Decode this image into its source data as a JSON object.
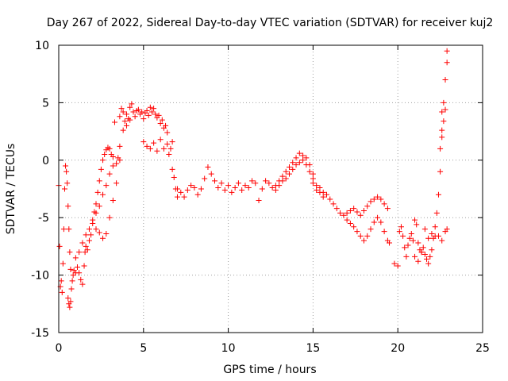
{
  "chart_data": {
    "type": "scatter",
    "title": "Day 267 of 2022, Sidereal Day-to-day VTEC variation (SDTVAR) for receiver kuj2",
    "xlabel": "GPS time / hours",
    "ylabel": "SDTVAR / TECUs",
    "xlim": [
      0,
      25
    ],
    "ylim": [
      -15,
      10
    ],
    "xticks": [
      0,
      5,
      10,
      15,
      20,
      25
    ],
    "yticks": [
      -15,
      -10,
      -5,
      0,
      5,
      10
    ],
    "xtick_labels": [
      "0",
      "5",
      "10",
      "15",
      "20",
      "25"
    ],
    "ytick_labels": [
      "-15",
      "-10",
      "-5",
      "0",
      "5",
      "10"
    ],
    "grid": true,
    "marker": "+",
    "color": "#ff0000",
    "series": [
      {
        "name": "kuj2",
        "points": [
          [
            0.0,
            -2.2
          ],
          [
            0.05,
            -7.5
          ],
          [
            0.1,
            -11.0
          ],
          [
            0.15,
            -10.5
          ],
          [
            0.2,
            -11.5
          ],
          [
            0.25,
            -9.0
          ],
          [
            0.3,
            -6.0
          ],
          [
            0.35,
            -2.5
          ],
          [
            0.4,
            -0.5
          ],
          [
            0.45,
            -1.0
          ],
          [
            0.5,
            -2.0
          ],
          [
            0.55,
            -4.0
          ],
          [
            0.6,
            -6.0
          ],
          [
            0.65,
            -8.0
          ],
          [
            0.7,
            -9.5
          ],
          [
            0.55,
            -12.0
          ],
          [
            0.6,
            -12.5
          ],
          [
            0.65,
            -12.8
          ],
          [
            0.7,
            -12.3
          ],
          [
            0.75,
            -11.2
          ],
          [
            0.8,
            -10.5
          ],
          [
            0.85,
            -10.0
          ],
          [
            0.9,
            -9.6
          ],
          [
            1.0,
            -9.8
          ],
          [
            1.1,
            -9.3
          ],
          [
            1.2,
            -9.8
          ],
          [
            1.3,
            -10.4
          ],
          [
            1.4,
            -10.8
          ],
          [
            1.5,
            -9.2
          ],
          [
            1.55,
            -8.0
          ],
          [
            1.6,
            -7.5
          ],
          [
            1.7,
            -7.8
          ],
          [
            1.8,
            -7.0
          ],
          [
            1.9,
            -6.5
          ],
          [
            2.0,
            -5.5
          ],
          [
            2.1,
            -4.5
          ],
          [
            2.2,
            -3.8
          ],
          [
            2.3,
            -2.8
          ],
          [
            2.4,
            -1.8
          ],
          [
            2.5,
            -0.8
          ],
          [
            2.6,
            0.0
          ],
          [
            2.7,
            0.5
          ],
          [
            2.8,
            0.9
          ],
          [
            2.9,
            1.1
          ],
          [
            3.0,
            1.0
          ],
          [
            3.1,
            0.5
          ],
          [
            3.2,
            0.3
          ],
          [
            3.3,
            3.3
          ],
          [
            1.0,
            -8.5
          ],
          [
            1.2,
            -8.0
          ],
          [
            1.4,
            -7.2
          ],
          [
            1.6,
            -6.5
          ],
          [
            1.8,
            -6.0
          ],
          [
            2.0,
            -5.2
          ],
          [
            2.2,
            -4.6
          ],
          [
            2.4,
            -4.0
          ],
          [
            2.6,
            -3.0
          ],
          [
            2.8,
            -2.2
          ],
          [
            3.0,
            -1.2
          ],
          [
            3.2,
            -0.5
          ],
          [
            3.4,
            -0.3
          ],
          [
            3.5,
            0.2
          ],
          [
            2.2,
            -6.0
          ],
          [
            2.4,
            -6.3
          ],
          [
            2.6,
            -6.8
          ],
          [
            2.8,
            -6.4
          ],
          [
            3.0,
            -5.0
          ],
          [
            3.2,
            -3.5
          ],
          [
            3.4,
            -2.0
          ],
          [
            3.6,
            0.0
          ],
          [
            3.6,
            1.2
          ],
          [
            3.8,
            2.6
          ],
          [
            4.0,
            3.0
          ],
          [
            4.2,
            3.5
          ],
          [
            3.6,
            3.8
          ],
          [
            3.7,
            4.5
          ],
          [
            3.8,
            4.2
          ],
          [
            3.9,
            3.4
          ],
          [
            4.0,
            4.0
          ],
          [
            4.1,
            3.6
          ],
          [
            4.2,
            4.6
          ],
          [
            4.3,
            4.9
          ],
          [
            4.4,
            4.2
          ],
          [
            4.5,
            3.8
          ],
          [
            4.6,
            4.3
          ],
          [
            4.7,
            4.4
          ],
          [
            4.8,
            4.0
          ],
          [
            4.9,
            4.2
          ],
          [
            5.0,
            3.6
          ],
          [
            5.1,
            4.1
          ],
          [
            5.2,
            4.3
          ],
          [
            5.3,
            3.9
          ],
          [
            5.4,
            4.6
          ],
          [
            5.5,
            4.2
          ],
          [
            5.6,
            4.5
          ],
          [
            5.7,
            4.0
          ],
          [
            5.8,
            3.7
          ],
          [
            5.9,
            3.9
          ],
          [
            6.0,
            3.2
          ],
          [
            6.1,
            3.5
          ],
          [
            6.2,
            2.8
          ],
          [
            6.3,
            3.0
          ],
          [
            6.4,
            2.4
          ],
          [
            5.0,
            1.6
          ],
          [
            5.2,
            1.2
          ],
          [
            5.4,
            1.0
          ],
          [
            5.6,
            1.5
          ],
          [
            5.8,
            0.8
          ],
          [
            6.0,
            1.8
          ],
          [
            6.2,
            1.0
          ],
          [
            6.4,
            1.4
          ],
          [
            6.5,
            0.5
          ],
          [
            6.6,
            1.0
          ],
          [
            6.7,
            -0.8
          ],
          [
            6.7,
            1.6
          ],
          [
            6.8,
            -1.5
          ],
          [
            6.9,
            -2.5
          ],
          [
            7.0,
            -3.2
          ],
          [
            7.0,
            -2.5
          ],
          [
            7.2,
            -2.8
          ],
          [
            7.4,
            -3.2
          ],
          [
            7.6,
            -2.6
          ],
          [
            7.8,
            -2.2
          ],
          [
            8.0,
            -2.4
          ],
          [
            8.2,
            -3.0
          ],
          [
            8.4,
            -2.5
          ],
          [
            8.6,
            -1.6
          ],
          [
            8.8,
            -0.6
          ],
          [
            9.0,
            -1.2
          ],
          [
            9.2,
            -1.8
          ],
          [
            9.4,
            -2.4
          ],
          [
            9.6,
            -2.0
          ],
          [
            9.8,
            -2.6
          ],
          [
            10.0,
            -2.2
          ],
          [
            10.2,
            -2.8
          ],
          [
            10.4,
            -2.4
          ],
          [
            10.6,
            -2.0
          ],
          [
            10.8,
            -2.6
          ],
          [
            11.0,
            -2.2
          ],
          [
            11.2,
            -2.4
          ],
          [
            11.4,
            -1.8
          ],
          [
            11.6,
            -2.0
          ],
          [
            11.8,
            -3.5
          ],
          [
            12.0,
            -2.5
          ],
          [
            12.2,
            -1.8
          ],
          [
            12.4,
            -2.0
          ],
          [
            12.6,
            -2.4
          ],
          [
            12.8,
            -2.2
          ],
          [
            13.0,
            -1.8
          ],
          [
            13.2,
            -1.4
          ],
          [
            13.4,
            -1.0
          ],
          [
            13.6,
            -0.6
          ],
          [
            13.8,
            -0.2
          ],
          [
            14.0,
            0.2
          ],
          [
            14.2,
            0.6
          ],
          [
            14.4,
            0.4
          ],
          [
            14.6,
            0.2
          ],
          [
            14.8,
            -0.4
          ],
          [
            15.0,
            -1.2
          ],
          [
            12.8,
            -2.6
          ],
          [
            13.0,
            -2.2
          ],
          [
            13.2,
            -1.8
          ],
          [
            13.4,
            -1.6
          ],
          [
            13.6,
            -1.2
          ],
          [
            13.8,
            -0.8
          ],
          [
            14.0,
            -0.4
          ],
          [
            14.2,
            -0.2
          ],
          [
            14.4,
            0.0
          ],
          [
            14.6,
            -0.4
          ],
          [
            14.8,
            -1.0
          ],
          [
            15.0,
            -2.0
          ],
          [
            15.2,
            -2.6
          ],
          [
            15.4,
            -2.8
          ],
          [
            15.6,
            -3.2
          ],
          [
            15.0,
            -1.6
          ],
          [
            15.2,
            -2.2
          ],
          [
            15.4,
            -2.4
          ],
          [
            15.6,
            -2.8
          ],
          [
            15.8,
            -3.0
          ],
          [
            16.0,
            -3.4
          ],
          [
            16.2,
            -3.8
          ],
          [
            16.4,
            -4.2
          ],
          [
            16.6,
            -4.6
          ],
          [
            16.8,
            -4.8
          ],
          [
            17.0,
            -4.6
          ],
          [
            17.2,
            -4.4
          ],
          [
            17.4,
            -4.2
          ],
          [
            17.6,
            -4.5
          ],
          [
            17.8,
            -4.8
          ],
          [
            18.0,
            -4.4
          ],
          [
            18.2,
            -4.0
          ],
          [
            18.4,
            -3.6
          ],
          [
            18.6,
            -3.4
          ],
          [
            18.8,
            -3.2
          ],
          [
            19.0,
            -3.4
          ],
          [
            19.2,
            -3.8
          ],
          [
            19.4,
            -4.2
          ],
          [
            17.0,
            -5.2
          ],
          [
            17.2,
            -5.5
          ],
          [
            17.4,
            -5.8
          ],
          [
            17.6,
            -6.2
          ],
          [
            17.8,
            -6.6
          ],
          [
            18.0,
            -7.0
          ],
          [
            18.2,
            -6.6
          ],
          [
            18.4,
            -6.0
          ],
          [
            18.6,
            -5.4
          ],
          [
            18.8,
            -5.0
          ],
          [
            19.0,
            -5.4
          ],
          [
            19.2,
            -6.2
          ],
          [
            19.4,
            -7.0
          ],
          [
            19.5,
            -7.2
          ],
          [
            19.8,
            -9.0
          ],
          [
            20.0,
            -9.2
          ],
          [
            20.1,
            -6.2
          ],
          [
            20.2,
            -5.8
          ],
          [
            20.3,
            -6.6
          ],
          [
            20.4,
            -7.6
          ],
          [
            20.5,
            -8.4
          ],
          [
            20.6,
            -7.4
          ],
          [
            20.7,
            -6.8
          ],
          [
            20.8,
            -6.4
          ],
          [
            20.9,
            -7.0
          ],
          [
            21.0,
            -5.2
          ],
          [
            21.1,
            -5.6
          ],
          [
            21.2,
            -7.2
          ],
          [
            21.3,
            -7.8
          ],
          [
            21.4,
            -8.0
          ],
          [
            21.5,
            -7.6
          ],
          [
            21.6,
            -8.2
          ],
          [
            21.7,
            -8.6
          ],
          [
            21.8,
            -9.0
          ],
          [
            21.9,
            -8.4
          ],
          [
            22.0,
            -7.8
          ],
          [
            22.1,
            -6.8
          ],
          [
            22.2,
            -5.8
          ],
          [
            22.3,
            -4.6
          ],
          [
            22.4,
            -3.0
          ],
          [
            22.5,
            -1.0
          ],
          [
            22.5,
            1.0
          ],
          [
            22.6,
            2.6
          ],
          [
            22.6,
            4.2
          ],
          [
            22.7,
            5.0
          ],
          [
            22.8,
            7.0
          ],
          [
            22.9,
            8.5
          ],
          [
            22.9,
            9.5
          ],
          [
            22.8,
            4.4
          ],
          [
            22.7,
            3.4
          ],
          [
            22.6,
            2.0
          ],
          [
            22.8,
            -6.2
          ],
          [
            22.9,
            -6.0
          ],
          [
            21.6,
            -6.0
          ],
          [
            21.8,
            -6.8
          ],
          [
            22.0,
            -6.4
          ],
          [
            22.2,
            -6.6
          ],
          [
            22.4,
            -6.6
          ],
          [
            22.6,
            -7.0
          ],
          [
            21.0,
            -8.4
          ],
          [
            21.2,
            -8.8
          ],
          [
            21.4,
            -8.0
          ]
        ]
      }
    ]
  }
}
